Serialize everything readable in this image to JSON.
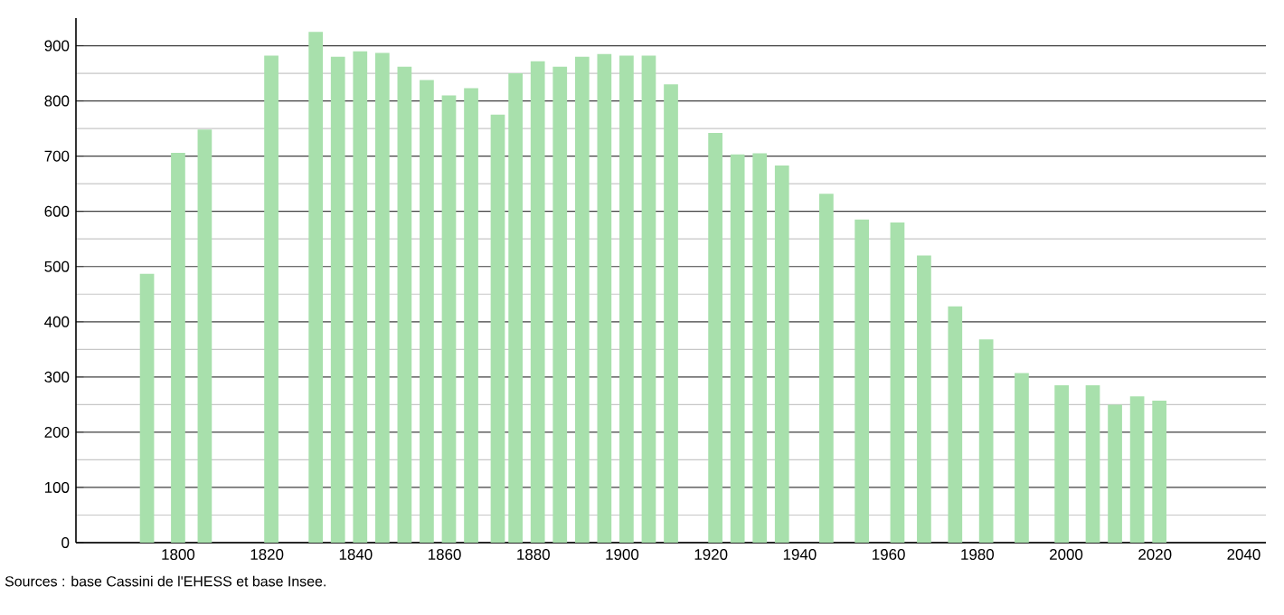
{
  "chart_data": {
    "type": "bar",
    "x": [
      1793,
      1800,
      1806,
      1821,
      1831,
      1836,
      1841,
      1846,
      1851,
      1856,
      1861,
      1866,
      1872,
      1876,
      1881,
      1886,
      1891,
      1896,
      1901,
      1906,
      1911,
      1921,
      1926,
      1931,
      1936,
      1946,
      1954,
      1962,
      1968,
      1975,
      1982,
      1990,
      1999,
      2006,
      2011,
      2016,
      2021
    ],
    "values": [
      487,
      706,
      748,
      882,
      925,
      880,
      890,
      887,
      862,
      838,
      810,
      823,
      775,
      850,
      872,
      862,
      880,
      885,
      882,
      882,
      830,
      742,
      703,
      705,
      683,
      632,
      585,
      580,
      520,
      428,
      368,
      307,
      285,
      285,
      250,
      265,
      257
    ],
    "color": "#a8e0ac",
    "xlim": [
      1777,
      2045
    ],
    "ylim": [
      0,
      950
    ],
    "xticks": [
      1800,
      1820,
      1840,
      1860,
      1880,
      1900,
      1920,
      1940,
      1960,
      1980,
      2000,
      2020,
      2040
    ],
    "yticks": [
      0,
      100,
      200,
      300,
      400,
      500,
      600,
      700,
      800,
      900
    ],
    "grid": "y",
    "annotations": [
      "Sources : base Cassini de l'EHESS et base Insee."
    ]
  }
}
